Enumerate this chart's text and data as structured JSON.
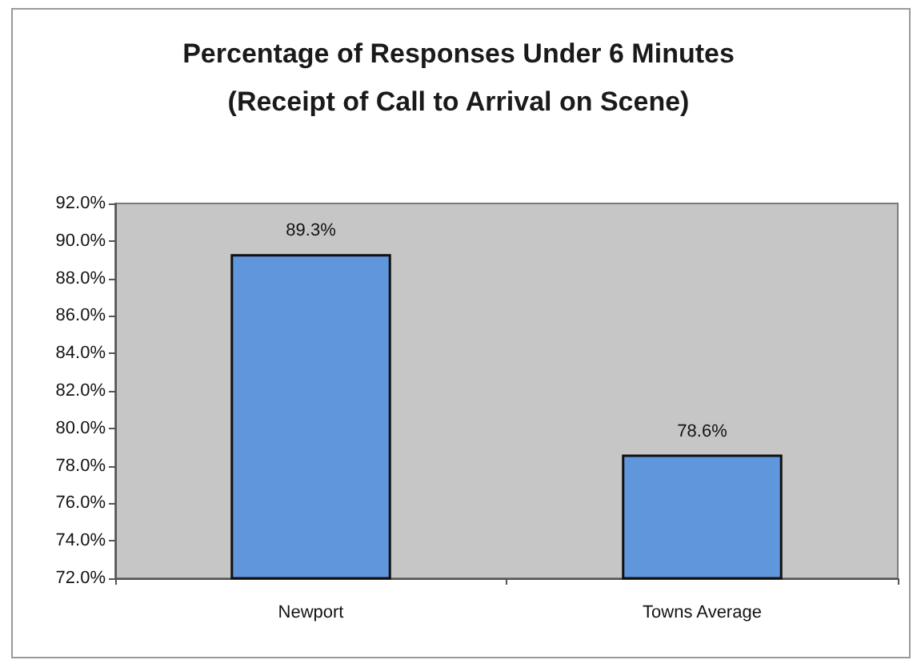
{
  "chart_data": {
    "type": "bar",
    "title": "Percentage of Responses Under 6 Minutes",
    "subtitle": "(Receipt of Call to Arrival on Scene)",
    "categories": [
      "Newport",
      "Towns Average"
    ],
    "values": [
      89.3,
      78.6
    ],
    "color": "#6096dc",
    "ylim": [
      72,
      92
    ],
    "yticks": [
      {
        "value": 72,
        "label": "72.0%"
      },
      {
        "value": 74,
        "label": "74.0%"
      },
      {
        "value": 76,
        "label": "76.0%"
      },
      {
        "value": 78,
        "label": "78.0%"
      },
      {
        "value": 80,
        "label": "80.0%"
      },
      {
        "value": 82,
        "label": "82.0%"
      },
      {
        "value": 84,
        "label": "84.0%"
      },
      {
        "value": 86,
        "label": "86.0%"
      },
      {
        "value": 88,
        "label": "88.0%"
      },
      {
        "value": 90,
        "label": "90.0%"
      },
      {
        "value": 92,
        "label": "92.0%"
      }
    ],
    "value_labels": [
      "89.3%",
      "78.6%"
    ]
  }
}
